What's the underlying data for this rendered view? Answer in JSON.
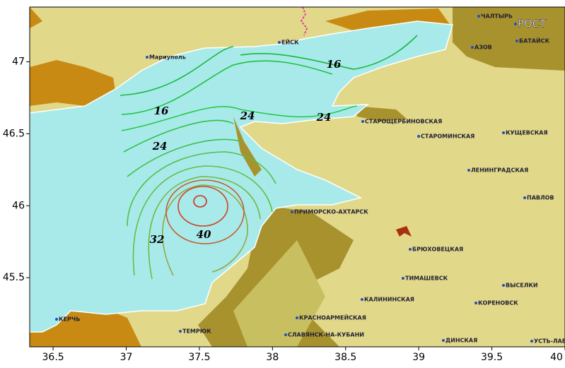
{
  "axes": {
    "xlim": [
      36.34,
      40.0
    ],
    "ylim": [
      45.02,
      47.38
    ],
    "xticks": [
      36.5,
      37,
      37.5,
      38,
      38.5,
      39,
      39.5,
      40
    ],
    "yticks": [
      45.5,
      46,
      46.5,
      47
    ]
  },
  "places": [
    "Мариуполь",
    "ЕЙСК",
    "ЧАЛТЫРЬ",
    "РОСТ",
    "АЗОВ",
    "БАТАЙСК",
    "СТАРОЩЕРБИНОВСКАЯ",
    "СТАРОМИНСКАЯ",
    "КУЩЕВСКАЯ",
    "ЛЕНИНГРАДСКАЯ",
    "ПАВЛОВ",
    "ПРИМОРСКО-АХТАРСК",
    "БРЮХОВЕЦКАЯ",
    "ТИМАШЕВСК",
    "ВЫСЕЛКИ",
    "КАЛИНИНСКАЯ",
    "КОРЕНОВСК",
    "КРАСНОАРМЕЙСКАЯ",
    "СЛАВЯНСК-НА-КУБАНИ",
    "ТЕМРЮК",
    "КЕРЧЬ",
    "ДИНСКАЯ",
    "УСТЬ-ЛАБ"
  ],
  "contour_labels": [
    "16",
    "16",
    "24",
    "24",
    "24",
    "32",
    "40"
  ]
}
